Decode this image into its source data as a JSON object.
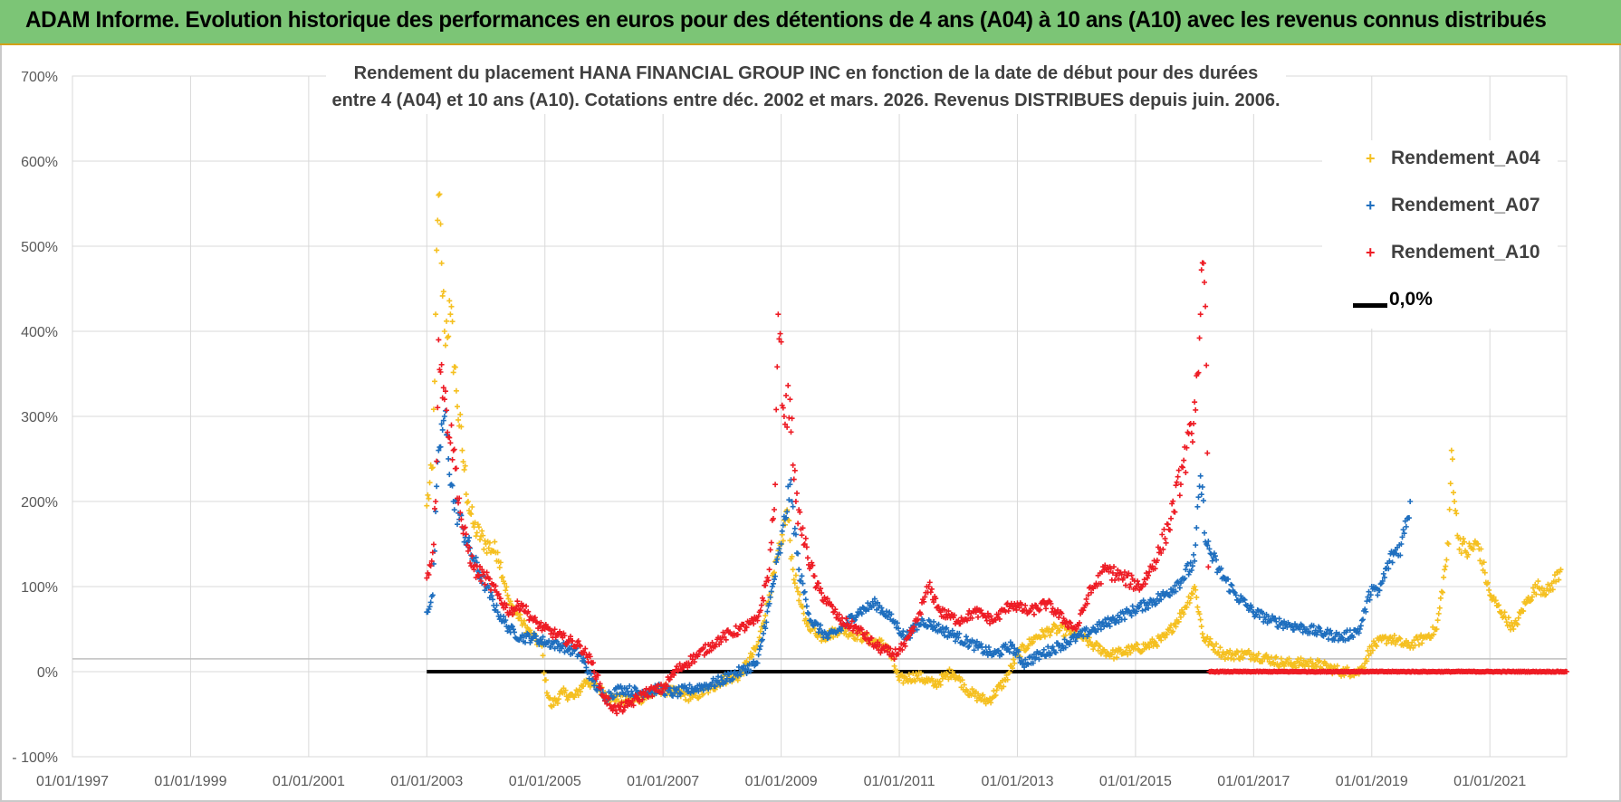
{
  "banner": {
    "title": "ADAM Informe. Evolution historique des performances en euros pour des détentions de 4 ans (A04) à 10 ans (A10) avec les revenus connus distribués",
    "color": "#7cc576"
  },
  "chart_data": {
    "type": "scatter",
    "title_line1": "Rendement du placement HANA FINANCIAL GROUP INC en fonction de la date de début pour des durées",
    "title_line2": "entre 4 (A04) et 10 ans (A10).  Cotations entre déc. 2002 et mars. 2026. Revenus DISTRIBUES depuis juin. 2006.",
    "xlabel": "",
    "ylabel": "",
    "xlim": [
      1997.0,
      2022.3
    ],
    "ylim": [
      -100,
      700
    ],
    "x_tick_labels": [
      "01/01/1997",
      "01/01/1999",
      "01/01/2001",
      "01/01/2003",
      "01/01/2005",
      "01/01/2007",
      "01/01/2009",
      "01/01/2011",
      "01/01/2013",
      "01/01/2015",
      "01/01/2017",
      "01/01/2019",
      "01/01/2021"
    ],
    "x_tick_values": [
      1997,
      1999,
      2001,
      2003,
      2005,
      2007,
      2009,
      2011,
      2013,
      2015,
      2017,
      2019,
      2021
    ],
    "y_tick_labels": [
      "- 100%",
      "0%",
      "100%",
      "200%",
      "300%",
      "400%",
      "500%",
      "600%",
      "700%"
    ],
    "y_tick_values": [
      -100,
      0,
      100,
      200,
      300,
      400,
      500,
      600,
      700
    ],
    "grid": true,
    "legend_position": "top-right",
    "series": [
      {
        "name": "Rendement_A04",
        "color": "#f5c021",
        "marker": "+",
        "points": [
          [
            2003.0,
            195
          ],
          [
            2003.1,
            240
          ],
          [
            2003.15,
            420
          ],
          [
            2003.2,
            560
          ],
          [
            2003.25,
            480
          ],
          [
            2003.3,
            400
          ],
          [
            2003.4,
            420
          ],
          [
            2003.5,
            330
          ],
          [
            2003.6,
            260
          ],
          [
            2003.7,
            200
          ],
          [
            2003.8,
            170
          ],
          [
            2004.0,
            150
          ],
          [
            2004.2,
            140
          ],
          [
            2004.4,
            80
          ],
          [
            2004.6,
            60
          ],
          [
            2004.8,
            40
          ],
          [
            2004.95,
            30
          ],
          [
            2005.0,
            -10
          ],
          [
            2005.1,
            -40
          ],
          [
            2005.3,
            -25
          ],
          [
            2005.5,
            -30
          ],
          [
            2005.7,
            -10
          ],
          [
            2005.9,
            -20
          ],
          [
            2006.1,
            -30
          ],
          [
            2006.4,
            -35
          ],
          [
            2006.7,
            -30
          ],
          [
            2007.0,
            -20
          ],
          [
            2007.2,
            -25
          ],
          [
            2007.5,
            -30
          ],
          [
            2007.8,
            -20
          ],
          [
            2008.0,
            -10
          ],
          [
            2008.3,
            -5
          ],
          [
            2008.6,
            30
          ],
          [
            2008.8,
            90
          ],
          [
            2009.0,
            150
          ],
          [
            2009.1,
            190
          ],
          [
            2009.2,
            120
          ],
          [
            2009.4,
            60
          ],
          [
            2009.7,
            40
          ],
          [
            2010.0,
            50
          ],
          [
            2010.4,
            40
          ],
          [
            2010.8,
            30
          ],
          [
            2011.0,
            -10
          ],
          [
            2011.3,
            -5
          ],
          [
            2011.6,
            -15
          ],
          [
            2011.9,
            0
          ],
          [
            2012.2,
            -25
          ],
          [
            2012.5,
            -35
          ],
          [
            2012.8,
            -10
          ],
          [
            2013.0,
            20
          ],
          [
            2013.3,
            40
          ],
          [
            2013.6,
            50
          ],
          [
            2014.0,
            45
          ],
          [
            2014.3,
            30
          ],
          [
            2014.6,
            20
          ],
          [
            2014.9,
            25
          ],
          [
            2015.2,
            30
          ],
          [
            2015.5,
            40
          ],
          [
            2015.8,
            70
          ],
          [
            2016.0,
            100
          ],
          [
            2016.15,
            40
          ],
          [
            2016.5,
            20
          ],
          [
            2017.0,
            20
          ],
          [
            2017.5,
            10
          ],
          [
            2018.0,
            10
          ],
          [
            2018.5,
            0
          ],
          [
            2018.8,
            0
          ],
          [
            2019.0,
            30
          ],
          [
            2019.3,
            40
          ],
          [
            2019.6,
            30
          ],
          [
            2019.9,
            40
          ],
          [
            2020.1,
            50
          ],
          [
            2020.3,
            150
          ],
          [
            2020.35,
            260
          ],
          [
            2020.45,
            160
          ],
          [
            2020.6,
            140
          ],
          [
            2020.8,
            150
          ],
          [
            2021.0,
            90
          ],
          [
            2021.2,
            70
          ],
          [
            2021.4,
            50
          ],
          [
            2021.6,
            80
          ],
          [
            2021.8,
            100
          ],
          [
            2022.0,
            95
          ],
          [
            2022.2,
            120
          ]
        ]
      },
      {
        "name": "Rendement_A07",
        "color": "#1f6fbf",
        "marker": "+",
        "points": [
          [
            2003.0,
            70
          ],
          [
            2003.1,
            90
          ],
          [
            2003.2,
            260
          ],
          [
            2003.3,
            300
          ],
          [
            2003.45,
            200
          ],
          [
            2003.6,
            170
          ],
          [
            2003.8,
            130
          ],
          [
            2004.0,
            100
          ],
          [
            2004.2,
            70
          ],
          [
            2004.4,
            50
          ],
          [
            2004.6,
            40
          ],
          [
            2004.8,
            40
          ],
          [
            2005.0,
            35
          ],
          [
            2005.3,
            30
          ],
          [
            2005.6,
            20
          ],
          [
            2005.8,
            -10
          ],
          [
            2006.0,
            -30
          ],
          [
            2006.3,
            -20
          ],
          [
            2006.6,
            -25
          ],
          [
            2006.9,
            -20
          ],
          [
            2007.2,
            -25
          ],
          [
            2007.5,
            -20
          ],
          [
            2007.8,
            -15
          ],
          [
            2008.0,
            -10
          ],
          [
            2008.3,
            0
          ],
          [
            2008.6,
            10
          ],
          [
            2008.8,
            80
          ],
          [
            2009.0,
            150
          ],
          [
            2009.15,
            220
          ],
          [
            2009.3,
            120
          ],
          [
            2009.5,
            60
          ],
          [
            2009.8,
            40
          ],
          [
            2010.0,
            50
          ],
          [
            2010.3,
            70
          ],
          [
            2010.6,
            80
          ],
          [
            2010.9,
            60
          ],
          [
            2011.1,
            40
          ],
          [
            2011.4,
            60
          ],
          [
            2011.7,
            50
          ],
          [
            2012.0,
            40
          ],
          [
            2012.3,
            30
          ],
          [
            2012.6,
            20
          ],
          [
            2012.9,
            30
          ],
          [
            2013.1,
            10
          ],
          [
            2013.4,
            20
          ],
          [
            2013.7,
            30
          ],
          [
            2014.0,
            40
          ],
          [
            2014.3,
            50
          ],
          [
            2014.6,
            60
          ],
          [
            2014.9,
            70
          ],
          [
            2015.2,
            80
          ],
          [
            2015.5,
            90
          ],
          [
            2015.8,
            110
          ],
          [
            2016.0,
            130
          ],
          [
            2016.1,
            230
          ],
          [
            2016.2,
            150
          ],
          [
            2016.4,
            120
          ],
          [
            2016.7,
            90
          ],
          [
            2017.0,
            70
          ],
          [
            2017.3,
            60
          ],
          [
            2017.6,
            55
          ],
          [
            2017.9,
            50
          ],
          [
            2018.2,
            45
          ],
          [
            2018.5,
            40
          ],
          [
            2018.8,
            50
          ],
          [
            2019.0,
            100
          ],
          [
            2019.1,
            90
          ],
          [
            2019.3,
            130
          ],
          [
            2019.5,
            150
          ],
          [
            2019.6,
            180
          ],
          [
            2019.65,
            200
          ]
        ]
      },
      {
        "name": "Rendement_A10",
        "color": "#ee1c25",
        "marker": "+",
        "points": [
          [
            2003.0,
            110
          ],
          [
            2003.1,
            140
          ],
          [
            2003.15,
            200
          ],
          [
            2003.2,
            390
          ],
          [
            2003.3,
            320
          ],
          [
            2003.45,
            260
          ],
          [
            2003.6,
            170
          ],
          [
            2003.8,
            120
          ],
          [
            2004.0,
            110
          ],
          [
            2004.2,
            90
          ],
          [
            2004.4,
            70
          ],
          [
            2004.6,
            80
          ],
          [
            2004.8,
            60
          ],
          [
            2005.0,
            50
          ],
          [
            2005.3,
            40
          ],
          [
            2005.6,
            30
          ],
          [
            2005.8,
            10
          ],
          [
            2006.0,
            -30
          ],
          [
            2006.2,
            -45
          ],
          [
            2006.4,
            -40
          ],
          [
            2006.7,
            -25
          ],
          [
            2007.0,
            -20
          ],
          [
            2007.2,
            0
          ],
          [
            2007.4,
            10
          ],
          [
            2007.6,
            20
          ],
          [
            2007.8,
            30
          ],
          [
            2008.0,
            40
          ],
          [
            2008.3,
            50
          ],
          [
            2008.6,
            60
          ],
          [
            2008.8,
            120
          ],
          [
            2008.9,
            220
          ],
          [
            2008.95,
            420
          ],
          [
            2009.05,
            300
          ],
          [
            2009.15,
            320
          ],
          [
            2009.25,
            200
          ],
          [
            2009.4,
            150
          ],
          [
            2009.6,
            100
          ],
          [
            2009.8,
            80
          ],
          [
            2010.0,
            60
          ],
          [
            2010.3,
            50
          ],
          [
            2010.6,
            30
          ],
          [
            2010.9,
            20
          ],
          [
            2011.1,
            30
          ],
          [
            2011.3,
            60
          ],
          [
            2011.5,
            100
          ],
          [
            2011.7,
            70
          ],
          [
            2012.0,
            60
          ],
          [
            2012.3,
            70
          ],
          [
            2012.6,
            60
          ],
          [
            2012.9,
            80
          ],
          [
            2013.2,
            70
          ],
          [
            2013.5,
            80
          ],
          [
            2013.8,
            60
          ],
          [
            2014.0,
            50
          ],
          [
            2014.2,
            90
          ],
          [
            2014.5,
            120
          ],
          [
            2014.8,
            110
          ],
          [
            2015.1,
            100
          ],
          [
            2015.4,
            140
          ],
          [
            2015.6,
            180
          ],
          [
            2015.8,
            240
          ],
          [
            2015.95,
            280
          ],
          [
            2016.05,
            350
          ],
          [
            2016.1,
            420
          ],
          [
            2016.15,
            480
          ],
          [
            2016.2,
            360
          ],
          [
            2016.25,
            0
          ],
          [
            2017.0,
            0
          ],
          [
            2018.0,
            0
          ],
          [
            2019.0,
            0
          ],
          [
            2020.0,
            0
          ],
          [
            2021.0,
            0
          ],
          [
            2022.3,
            0
          ]
        ]
      }
    ],
    "reference_line": {
      "name": "0,0%",
      "y": 0,
      "x_start": 2003.0,
      "x_end": 2022.3,
      "color": "#000000"
    }
  }
}
